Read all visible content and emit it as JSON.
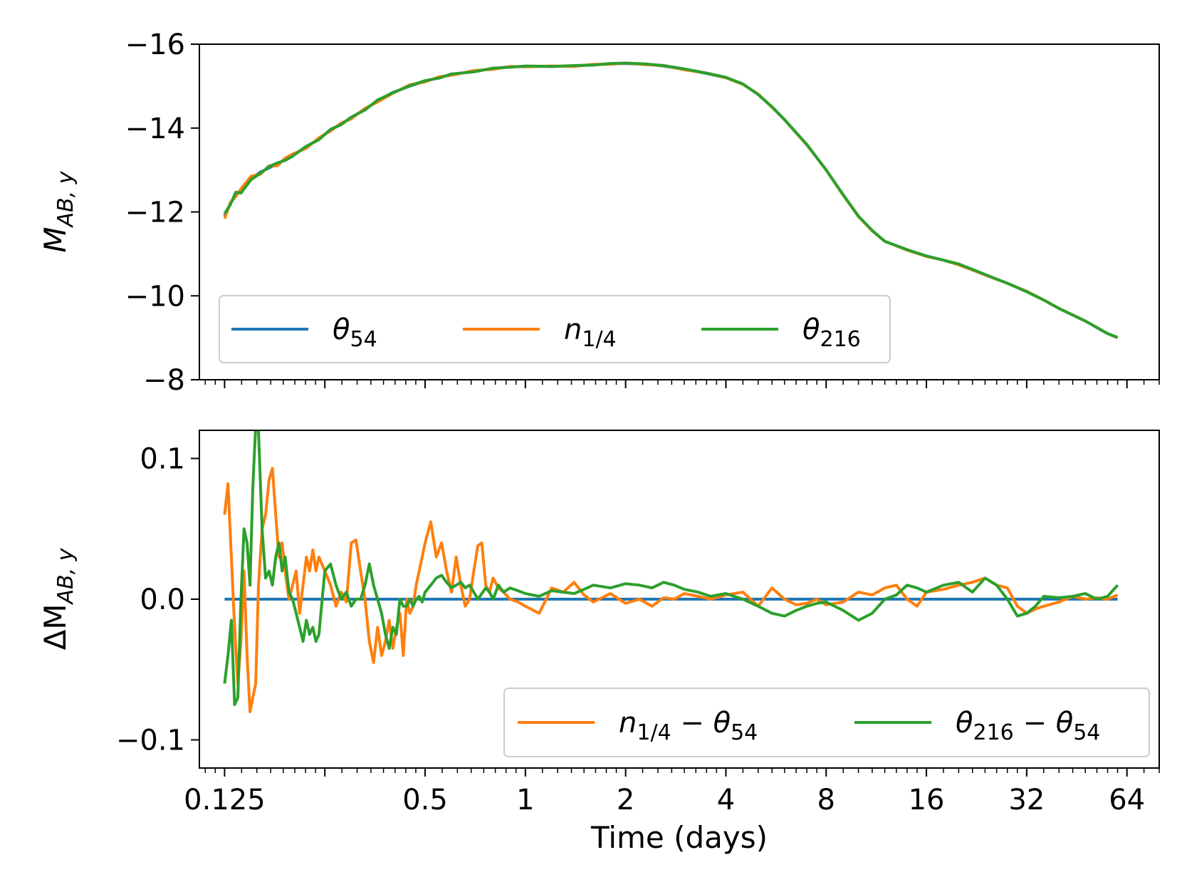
{
  "chart_data": [
    {
      "type": "line",
      "panel": "top",
      "ylabel_main": "M",
      "ylabel_sub": "AB, y",
      "xscale": "log2",
      "xlim": [
        0.105,
        80
      ],
      "ylim": [
        -16,
        -8
      ],
      "y_inverted": true,
      "yticks": [
        -16,
        -14,
        -12,
        -10,
        -8
      ],
      "ytick_labels": [
        "−16",
        "−14",
        "−12",
        "−10",
        "−8"
      ],
      "legend_position": "lower-left",
      "series": [
        {
          "name": "θ54",
          "label_main": "θ",
          "label_sub": "54",
          "color": "#1f77b4",
          "x": [
            0.125,
            0.13,
            0.135,
            0.14,
            0.15,
            0.16,
            0.17,
            0.18,
            0.19,
            0.2,
            0.22,
            0.24,
            0.26,
            0.28,
            0.3,
            0.33,
            0.36,
            0.4,
            0.45,
            0.5,
            0.55,
            0.6,
            0.7,
            0.8,
            0.9,
            1.0,
            1.2,
            1.4,
            1.6,
            1.8,
            2.0,
            2.3,
            2.6,
            3.0,
            3.5,
            4.0,
            4.5,
            5.0,
            5.5,
            6.0,
            7.0,
            8.0,
            9.0,
            10.0,
            11.0,
            12.0,
            14.0,
            16.0,
            18.0,
            20.0,
            24.0,
            28.0,
            32.0,
            36.0,
            40.0,
            48.0,
            56.0,
            60.0
          ],
          "y": [
            -11.9,
            -12.2,
            -12.4,
            -12.5,
            -12.8,
            -12.95,
            -13.05,
            -13.15,
            -13.25,
            -13.35,
            -13.55,
            -13.75,
            -13.95,
            -14.1,
            -14.25,
            -14.45,
            -14.65,
            -14.85,
            -15.0,
            -15.12,
            -15.2,
            -15.28,
            -15.35,
            -15.42,
            -15.46,
            -15.47,
            -15.47,
            -15.48,
            -15.51,
            -15.53,
            -15.54,
            -15.52,
            -15.48,
            -15.4,
            -15.3,
            -15.2,
            -15.05,
            -14.8,
            -14.5,
            -14.2,
            -13.6,
            -13.0,
            -12.4,
            -11.9,
            -11.55,
            -11.3,
            -11.1,
            -10.95,
            -10.85,
            -10.75,
            -10.5,
            -10.3,
            -10.1,
            -9.9,
            -9.7,
            -9.4,
            -9.1,
            -9.0
          ]
        },
        {
          "name": "n1/4",
          "label_main": "n",
          "label_sub": "1/4",
          "color": "#ff7f0e",
          "x": [
            0.125,
            0.13,
            0.135,
            0.14,
            0.15,
            0.16,
            0.17,
            0.18,
            0.19,
            0.2,
            0.22,
            0.24,
            0.26,
            0.28,
            0.3,
            0.33,
            0.36,
            0.4,
            0.45,
            0.5,
            0.55,
            0.6,
            0.7,
            0.8,
            0.9,
            1.0,
            1.2,
            1.4,
            1.6,
            1.8,
            2.0,
            2.3,
            2.6,
            3.0,
            3.5,
            4.0,
            4.5,
            5.0,
            5.5,
            6.0,
            7.0,
            8.0,
            9.0,
            10.0,
            11.0,
            12.0,
            14.0,
            16.0,
            18.0,
            20.0,
            24.0,
            28.0,
            32.0,
            36.0,
            40.0,
            48.0,
            56.0,
            60.0
          ],
          "y": [
            -11.84,
            -12.22,
            -12.37,
            -12.55,
            -12.85,
            -12.9,
            -13.1,
            -13.1,
            -13.28,
            -13.38,
            -13.52,
            -13.77,
            -13.93,
            -14.12,
            -14.22,
            -14.47,
            -14.62,
            -14.83,
            -15.03,
            -15.1,
            -15.22,
            -15.26,
            -15.37,
            -15.4,
            -15.47,
            -15.46,
            -15.48,
            -15.47,
            -15.52,
            -15.52,
            -15.55,
            -15.51,
            -15.49,
            -15.39,
            -15.31,
            -15.2,
            -15.04,
            -14.81,
            -14.5,
            -14.2,
            -13.6,
            -13.0,
            -12.4,
            -11.89,
            -11.55,
            -11.3,
            -11.09,
            -10.94,
            -10.85,
            -10.74,
            -10.5,
            -10.3,
            -10.11,
            -9.9,
            -9.7,
            -9.4,
            -9.1,
            -9.0
          ]
        },
        {
          "name": "θ216",
          "label_main": "θ",
          "label_sub": "216",
          "color": "#2ca02c",
          "x": [
            0.125,
            0.13,
            0.135,
            0.14,
            0.15,
            0.16,
            0.17,
            0.18,
            0.19,
            0.2,
            0.22,
            0.24,
            0.26,
            0.28,
            0.3,
            0.33,
            0.36,
            0.4,
            0.45,
            0.5,
            0.55,
            0.6,
            0.7,
            0.8,
            0.9,
            1.0,
            1.2,
            1.4,
            1.6,
            1.8,
            2.0,
            2.3,
            2.6,
            3.0,
            3.5,
            4.0,
            4.5,
            5.0,
            5.5,
            6.0,
            7.0,
            8.0,
            9.0,
            10.0,
            11.0,
            12.0,
            14.0,
            16.0,
            18.0,
            20.0,
            24.0,
            28.0,
            32.0,
            36.0,
            40.0,
            48.0,
            56.0,
            60.0
          ],
          "y": [
            -11.96,
            -12.17,
            -12.47,
            -12.45,
            -12.77,
            -12.92,
            -13.08,
            -13.17,
            -13.23,
            -13.33,
            -13.57,
            -13.72,
            -13.97,
            -14.08,
            -14.26,
            -14.43,
            -14.67,
            -14.84,
            -15.01,
            -15.13,
            -15.19,
            -15.29,
            -15.34,
            -15.43,
            -15.45,
            -15.48,
            -15.47,
            -15.49,
            -15.5,
            -15.54,
            -15.55,
            -15.53,
            -15.49,
            -15.41,
            -15.31,
            -15.21,
            -15.05,
            -14.8,
            -14.51,
            -14.2,
            -13.61,
            -13.0,
            -12.41,
            -11.9,
            -11.56,
            -11.3,
            -11.1,
            -10.95,
            -10.85,
            -10.76,
            -10.51,
            -10.3,
            -10.1,
            -9.9,
            -9.7,
            -9.4,
            -9.1,
            -9.01
          ]
        }
      ]
    },
    {
      "type": "line",
      "panel": "bottom",
      "ylabel_main": "ΔM",
      "ylabel_sub": "AB, y",
      "xlabel": "Time (days)",
      "xscale": "log2",
      "xlim": [
        0.105,
        80
      ],
      "ylim": [
        -0.12,
        0.12
      ],
      "yticks": [
        0.1,
        0.0,
        -0.1
      ],
      "ytick_labels": [
        "0.1",
        "0.0",
        "−0.1"
      ],
      "xticks": [
        0.125,
        0.5,
        1,
        2,
        4,
        8,
        16,
        32,
        64
      ],
      "xtick_labels": [
        "0.125",
        "0.5",
        "1",
        "2",
        "4",
        "8",
        "16",
        "32",
        "64"
      ],
      "legend_position": "lower-right",
      "series": [
        {
          "name": "θ54 baseline",
          "color": "#1f77b4",
          "in_legend": false,
          "x": [
            0.125,
            60.0
          ],
          "y": [
            0.0,
            0.0
          ]
        },
        {
          "name": "n1/4 − θ54",
          "label_main_a": "n",
          "label_sub_a": "1/4",
          "label_main_b": "θ",
          "label_sub_b": "54",
          "color": "#ff7f0e",
          "x": [
            0.125,
            0.128,
            0.131,
            0.134,
            0.137,
            0.14,
            0.143,
            0.146,
            0.149,
            0.152,
            0.155,
            0.158,
            0.162,
            0.166,
            0.17,
            0.174,
            0.178,
            0.182,
            0.186,
            0.19,
            0.195,
            0.2,
            0.205,
            0.21,
            0.215,
            0.22,
            0.225,
            0.23,
            0.235,
            0.24,
            0.25,
            0.26,
            0.27,
            0.28,
            0.29,
            0.3,
            0.31,
            0.32,
            0.33,
            0.34,
            0.35,
            0.36,
            0.37,
            0.38,
            0.39,
            0.4,
            0.41,
            0.42,
            0.43,
            0.44,
            0.45,
            0.46,
            0.47,
            0.48,
            0.49,
            0.5,
            0.52,
            0.54,
            0.56,
            0.58,
            0.6,
            0.62,
            0.64,
            0.66,
            0.68,
            0.7,
            0.72,
            0.74,
            0.76,
            0.78,
            0.8,
            0.83,
            0.86,
            0.9,
            0.95,
            1.0,
            1.1,
            1.2,
            1.3,
            1.4,
            1.5,
            1.6,
            1.8,
            2.0,
            2.2,
            2.4,
            2.6,
            2.8,
            3.0,
            3.3,
            3.6,
            4.0,
            4.5,
            5.0,
            5.5,
            6.0,
            6.5,
            7.0,
            7.5,
            8.0,
            9.0,
            10.0,
            11.0,
            12.0,
            13.0,
            14.0,
            15.0,
            16.0,
            18.0,
            20.0,
            22.0,
            24.0,
            26.0,
            28.0,
            30.0,
            32.0,
            34.0,
            36.0,
            40.0,
            44.0,
            48.0,
            52.0,
            56.0,
            60.0
          ],
          "y": [
            0.06,
            0.082,
            0.03,
            -0.02,
            -0.06,
            -0.03,
            0.02,
            -0.04,
            -0.08,
            -0.07,
            -0.06,
            0.01,
            0.05,
            0.06,
            0.085,
            0.093,
            0.06,
            0.03,
            0.04,
            0.02,
            0.0,
            0.01,
            0.02,
            -0.01,
            0.01,
            0.03,
            0.02,
            0.035,
            0.02,
            0.03,
            0.02,
            0.01,
            -0.005,
            0.005,
            -0.002,
            0.04,
            0.042,
            0.02,
            0.0,
            -0.03,
            -0.045,
            -0.02,
            -0.04,
            -0.03,
            -0.015,
            -0.035,
            -0.02,
            -0.01,
            -0.04,
            0.0,
            -0.01,
            -0.005,
            0.01,
            0.02,
            0.03,
            0.04,
            0.055,
            0.03,
            0.04,
            0.02,
            0.005,
            0.03,
            0.01,
            -0.005,
            0.0,
            0.02,
            0.038,
            0.04,
            0.01,
            0.005,
            0.015,
            0.008,
            0.005,
            0.0,
            -0.002,
            -0.005,
            -0.01,
            0.008,
            0.005,
            0.012,
            0.003,
            -0.002,
            0.004,
            -0.003,
            0.0,
            -0.005,
            0.001,
            0.0,
            0.004,
            0.002,
            0.0,
            0.003,
            0.005,
            -0.005,
            0.008,
            0.0,
            -0.004,
            -0.003,
            0.0,
            -0.004,
            -0.002,
            0.005,
            0.003,
            0.008,
            0.01,
            0.0,
            -0.005,
            0.005,
            0.007,
            0.01,
            0.012,
            0.015,
            0.01,
            0.008,
            -0.005,
            -0.01,
            -0.007,
            -0.005,
            -0.002,
            0.002,
            0.0,
            0.001,
            0.0,
            0.003
          ]
        },
        {
          "name": "θ216 − θ54",
          "label_main_a": "θ",
          "label_sub_a": "216",
          "label_main_b": "θ",
          "label_sub_b": "54",
          "color": "#2ca02c",
          "x": [
            0.125,
            0.128,
            0.131,
            0.134,
            0.137,
            0.14,
            0.143,
            0.146,
            0.149,
            0.152,
            0.155,
            0.158,
            0.162,
            0.166,
            0.17,
            0.174,
            0.178,
            0.182,
            0.186,
            0.19,
            0.195,
            0.2,
            0.205,
            0.21,
            0.215,
            0.22,
            0.225,
            0.23,
            0.235,
            0.24,
            0.25,
            0.26,
            0.27,
            0.28,
            0.29,
            0.3,
            0.31,
            0.32,
            0.33,
            0.34,
            0.35,
            0.36,
            0.37,
            0.38,
            0.39,
            0.4,
            0.41,
            0.42,
            0.43,
            0.44,
            0.45,
            0.46,
            0.47,
            0.48,
            0.49,
            0.5,
            0.52,
            0.54,
            0.56,
            0.58,
            0.6,
            0.62,
            0.64,
            0.66,
            0.68,
            0.7,
            0.72,
            0.74,
            0.76,
            0.78,
            0.8,
            0.83,
            0.86,
            0.9,
            0.95,
            1.0,
            1.1,
            1.2,
            1.3,
            1.4,
            1.5,
            1.6,
            1.8,
            2.0,
            2.2,
            2.4,
            2.6,
            2.8,
            3.0,
            3.3,
            3.6,
            4.0,
            4.5,
            5.0,
            5.5,
            6.0,
            6.5,
            7.0,
            7.5,
            8.0,
            9.0,
            10.0,
            11.0,
            12.0,
            13.0,
            14.0,
            15.0,
            16.0,
            18.0,
            20.0,
            22.0,
            24.0,
            26.0,
            28.0,
            30.0,
            32.0,
            34.0,
            36.0,
            40.0,
            44.0,
            48.0,
            52.0,
            56.0,
            60.0
          ],
          "y": [
            -0.06,
            -0.04,
            -0.015,
            -0.075,
            -0.07,
            0.0,
            0.05,
            0.04,
            0.01,
            0.08,
            0.123,
            0.12,
            0.05,
            0.015,
            0.02,
            0.01,
            0.03,
            0.04,
            0.02,
            0.03,
            0.005,
            0.0,
            -0.01,
            -0.02,
            -0.03,
            -0.015,
            -0.025,
            -0.02,
            -0.03,
            -0.025,
            0.02,
            0.025,
            0.01,
            0.0,
            0.005,
            -0.005,
            0.0,
            0.0,
            0.01,
            0.025,
            0.01,
            0.0,
            -0.01,
            -0.025,
            -0.035,
            -0.02,
            -0.025,
            0.0,
            -0.005,
            -0.005,
            0.0,
            -0.005,
            0.0,
            0.002,
            -0.002,
            0.005,
            0.01,
            0.015,
            0.017,
            0.012,
            0.008,
            0.01,
            0.012,
            0.008,
            0.01,
            0.005,
            0.0,
            0.004,
            0.008,
            0.005,
            0.0,
            0.01,
            0.005,
            0.008,
            0.006,
            0.004,
            0.002,
            0.006,
            0.005,
            0.004,
            0.007,
            0.01,
            0.008,
            0.011,
            0.01,
            0.008,
            0.012,
            0.01,
            0.007,
            0.005,
            0.002,
            0.004,
            0.0,
            -0.005,
            -0.01,
            -0.012,
            -0.008,
            -0.005,
            -0.003,
            -0.002,
            -0.008,
            -0.015,
            -0.01,
            0.0,
            0.003,
            0.01,
            0.008,
            0.005,
            0.01,
            0.012,
            0.005,
            0.015,
            0.01,
            0.0,
            -0.012,
            -0.01,
            -0.005,
            0.002,
            0.001,
            0.002,
            0.004,
            0.0,
            0.002,
            0.01
          ]
        }
      ]
    }
  ]
}
